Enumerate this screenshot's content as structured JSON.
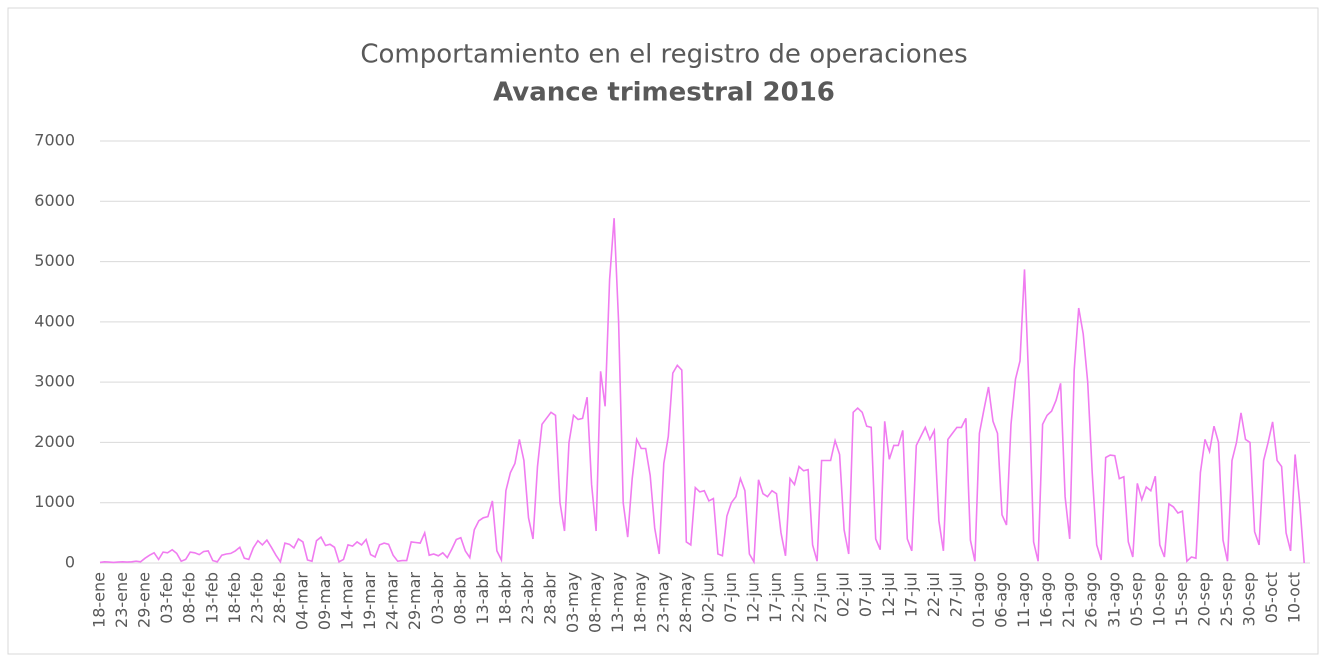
{
  "chart_data": {
    "type": "line",
    "title": "Comportamiento en el registro de operaciones",
    "subtitle": "Avance trimestral 2016",
    "categories": [
      "18-ene",
      null,
      null,
      null,
      null,
      "23-ene",
      null,
      null,
      null,
      null,
      "29-ene",
      null,
      null,
      null,
      null,
      "03-feb",
      null,
      null,
      null,
      null,
      "08-feb",
      null,
      null,
      null,
      null,
      "13-feb",
      null,
      null,
      null,
      null,
      "18-feb",
      null,
      null,
      null,
      null,
      "23-feb",
      null,
      null,
      null,
      null,
      "28-feb",
      null,
      null,
      null,
      null,
      "04-mar",
      null,
      null,
      null,
      null,
      "09-mar",
      null,
      null,
      null,
      null,
      "14-mar",
      null,
      null,
      null,
      null,
      "19-mar",
      null,
      null,
      null,
      null,
      "24-mar",
      null,
      null,
      null,
      null,
      "29-mar",
      null,
      null,
      null,
      null,
      "03-abr",
      null,
      null,
      null,
      null,
      "08-abr",
      null,
      null,
      null,
      null,
      "13-abr",
      null,
      null,
      null,
      null,
      "18-abr",
      null,
      null,
      null,
      null,
      "23-abr",
      null,
      null,
      null,
      null,
      "28-abr",
      null,
      null,
      null,
      null,
      "03-may",
      null,
      null,
      null,
      null,
      "08-may",
      null,
      null,
      null,
      null,
      "13-may",
      null,
      null,
      null,
      null,
      "18-may",
      null,
      null,
      null,
      null,
      "23-may",
      null,
      null,
      null,
      null,
      "28-may",
      null,
      null,
      null,
      null,
      "02-jun",
      null,
      null,
      null,
      null,
      "07-jun",
      null,
      null,
      null,
      null,
      "12-jun",
      null,
      null,
      null,
      null,
      "17-jun",
      null,
      null,
      null,
      null,
      "22-jun",
      null,
      null,
      null,
      null,
      "27-jun",
      null,
      null,
      null,
      null,
      "02-jul",
      null,
      null,
      null,
      null,
      "07-jul",
      null,
      null,
      null,
      null,
      "12-jul",
      null,
      null,
      null,
      null,
      "17-jul",
      null,
      null,
      null,
      null,
      "22-jul",
      null,
      null,
      null,
      null,
      "27-jul",
      null,
      null,
      null,
      null,
      "01-ago",
      null,
      null,
      null,
      null,
      "06-ago",
      null,
      null,
      null,
      null,
      "11-ago",
      null,
      null,
      null,
      null,
      "16-ago",
      null,
      null,
      null,
      null,
      "21-ago",
      null,
      null,
      null,
      null,
      "26-ago",
      null,
      null,
      null,
      null,
      "31-ago",
      null,
      null,
      null,
      null,
      "05-sep",
      null,
      null,
      null,
      null,
      "10-sep",
      null,
      null,
      null,
      null,
      "15-sep",
      null,
      null,
      null,
      null,
      "20-sep",
      null,
      null,
      null,
      null,
      "25-sep",
      null,
      null,
      null,
      null,
      "30-sep",
      null,
      null,
      null,
      null,
      "05-oct",
      null,
      null,
      null,
      null,
      "10-oct",
      null,
      null
    ],
    "values": [
      10,
      20,
      15,
      10,
      15,
      20,
      15,
      20,
      30,
      20,
      80,
      130,
      170,
      60,
      180,
      170,
      220,
      160,
      30,
      60,
      180,
      170,
      140,
      190,
      200,
      40,
      20,
      130,
      150,
      160,
      200,
      260,
      80,
      60,
      250,
      370,
      300,
      380,
      260,
      130,
      20,
      330,
      310,
      250,
      400,
      350,
      50,
      30,
      370,
      430,
      290,
      310,
      260,
      20,
      60,
      300,
      280,
      350,
      300,
      390,
      140,
      100,
      300,
      330,
      310,
      130,
      30,
      40,
      40,
      350,
      340,
      330,
      500,
      130,
      150,
      120,
      170,
      90,
      230,
      390,
      420,
      200,
      90,
      550,
      700,
      750,
      770,
      1030,
      200,
      50,
      1200,
      1500,
      1650,
      2050,
      1700,
      750,
      400,
      1600,
      2300,
      2400,
      2500,
      2450,
      1000,
      530,
      2000,
      2450,
      2380,
      2400,
      2750,
      1300,
      530,
      3180,
      2600,
      4700,
      5720,
      4000,
      1000,
      430,
      1400,
      2050,
      1900,
      1900,
      1450,
      580,
      150,
      1650,
      2100,
      3150,
      3280,
      3200,
      350,
      300,
      1250,
      1180,
      1200,
      1030,
      1070,
      150,
      120,
      780,
      1000,
      1100,
      1400,
      1200,
      150,
      20,
      1380,
      1150,
      1100,
      1200,
      1150,
      500,
      120,
      1400,
      1300,
      1600,
      1530,
      1550,
      300,
      30,
      1700,
      1700,
      1700,
      2030,
      1800,
      550,
      150,
      2500,
      2570,
      2500,
      2270,
      2250,
      400,
      220,
      2350,
      1720,
      1950,
      1950,
      2200,
      400,
      200,
      1950,
      2100,
      2250,
      2050,
      2200,
      700,
      200,
      2050,
      2150,
      2250,
      2250,
      2400,
      380,
      30,
      2150,
      2550,
      2920,
      2350,
      2150,
      800,
      630,
      2300,
      3050,
      3350,
      4870,
      2850,
      350,
      30,
      2300,
      2450,
      2520,
      2700,
      2980,
      1100,
      400,
      3200,
      4230,
      3800,
      3000,
      1500,
      300,
      50,
      1750,
      1790,
      1780,
      1400,
      1430,
      350,
      100,
      1320,
      1050,
      1260,
      1200,
      1440,
      300,
      100,
      980,
      930,
      830,
      860,
      30,
      100,
      80,
      1500,
      2050,
      1850,
      2270,
      2000,
      380,
      30,
      1700,
      2000,
      2490,
      2050,
      2000,
      520,
      300,
      1700,
      2000,
      2340,
      1700,
      1600,
      500,
      200,
      1800,
      1000,
      0
    ],
    "color": "#f07cf0",
    "ylim": [
      0,
      7000
    ],
    "yticks": [
      0,
      1000,
      2000,
      3000,
      4000,
      5000,
      6000,
      7000
    ],
    "grid": true
  }
}
